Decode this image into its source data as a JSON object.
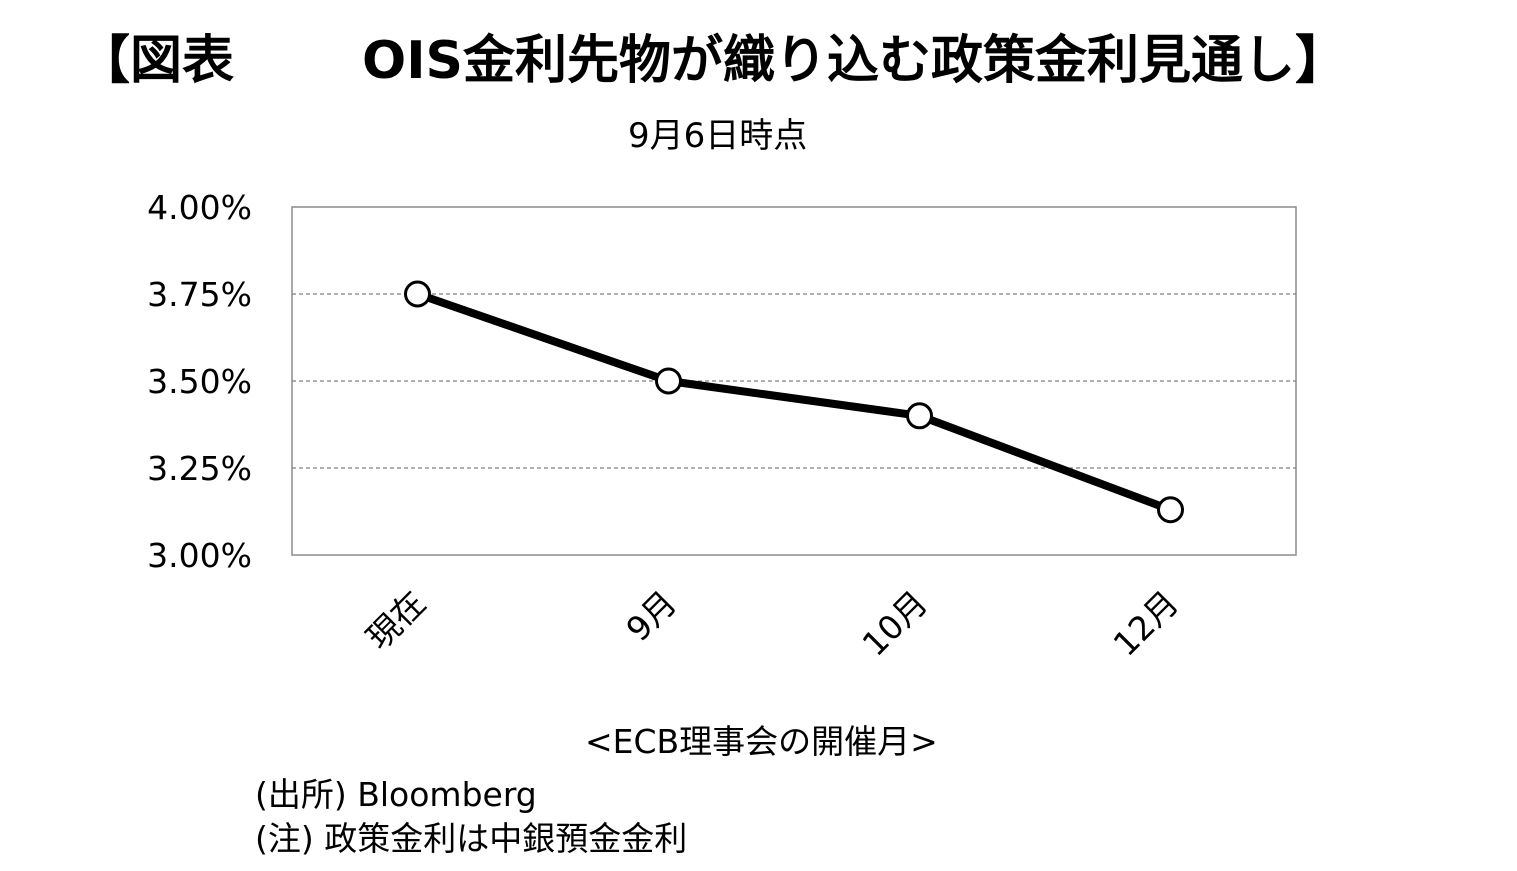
{
  "header": {
    "label": "【図表",
    "title": "OIS金利先物が織り込む政策金利見通し】"
  },
  "chart_data": {
    "type": "line",
    "title": "",
    "subtitle": "9月6日時点",
    "categories": [
      "現在",
      "9月",
      "10月",
      "12月"
    ],
    "series": [
      {
        "values": [
          3.75,
          3.5,
          3.4,
          3.13
        ]
      }
    ],
    "xlabel": "<ECB理事会の開催月>",
    "ylabel": "",
    "ylim": [
      3.0,
      4.0
    ],
    "yticks": [
      "4.00%",
      "3.75%",
      "3.50%",
      "3.25%",
      "3.00%"
    ],
    "ytick_values": [
      4.0,
      3.75,
      3.5,
      3.25,
      3.0
    ],
    "grid": true,
    "line_color": "#000000",
    "marker_fill": "#ffffff"
  },
  "notes": {
    "source": "(出所) Bloomberg",
    "note": "(注) 政策金利は中銀預金金利"
  }
}
